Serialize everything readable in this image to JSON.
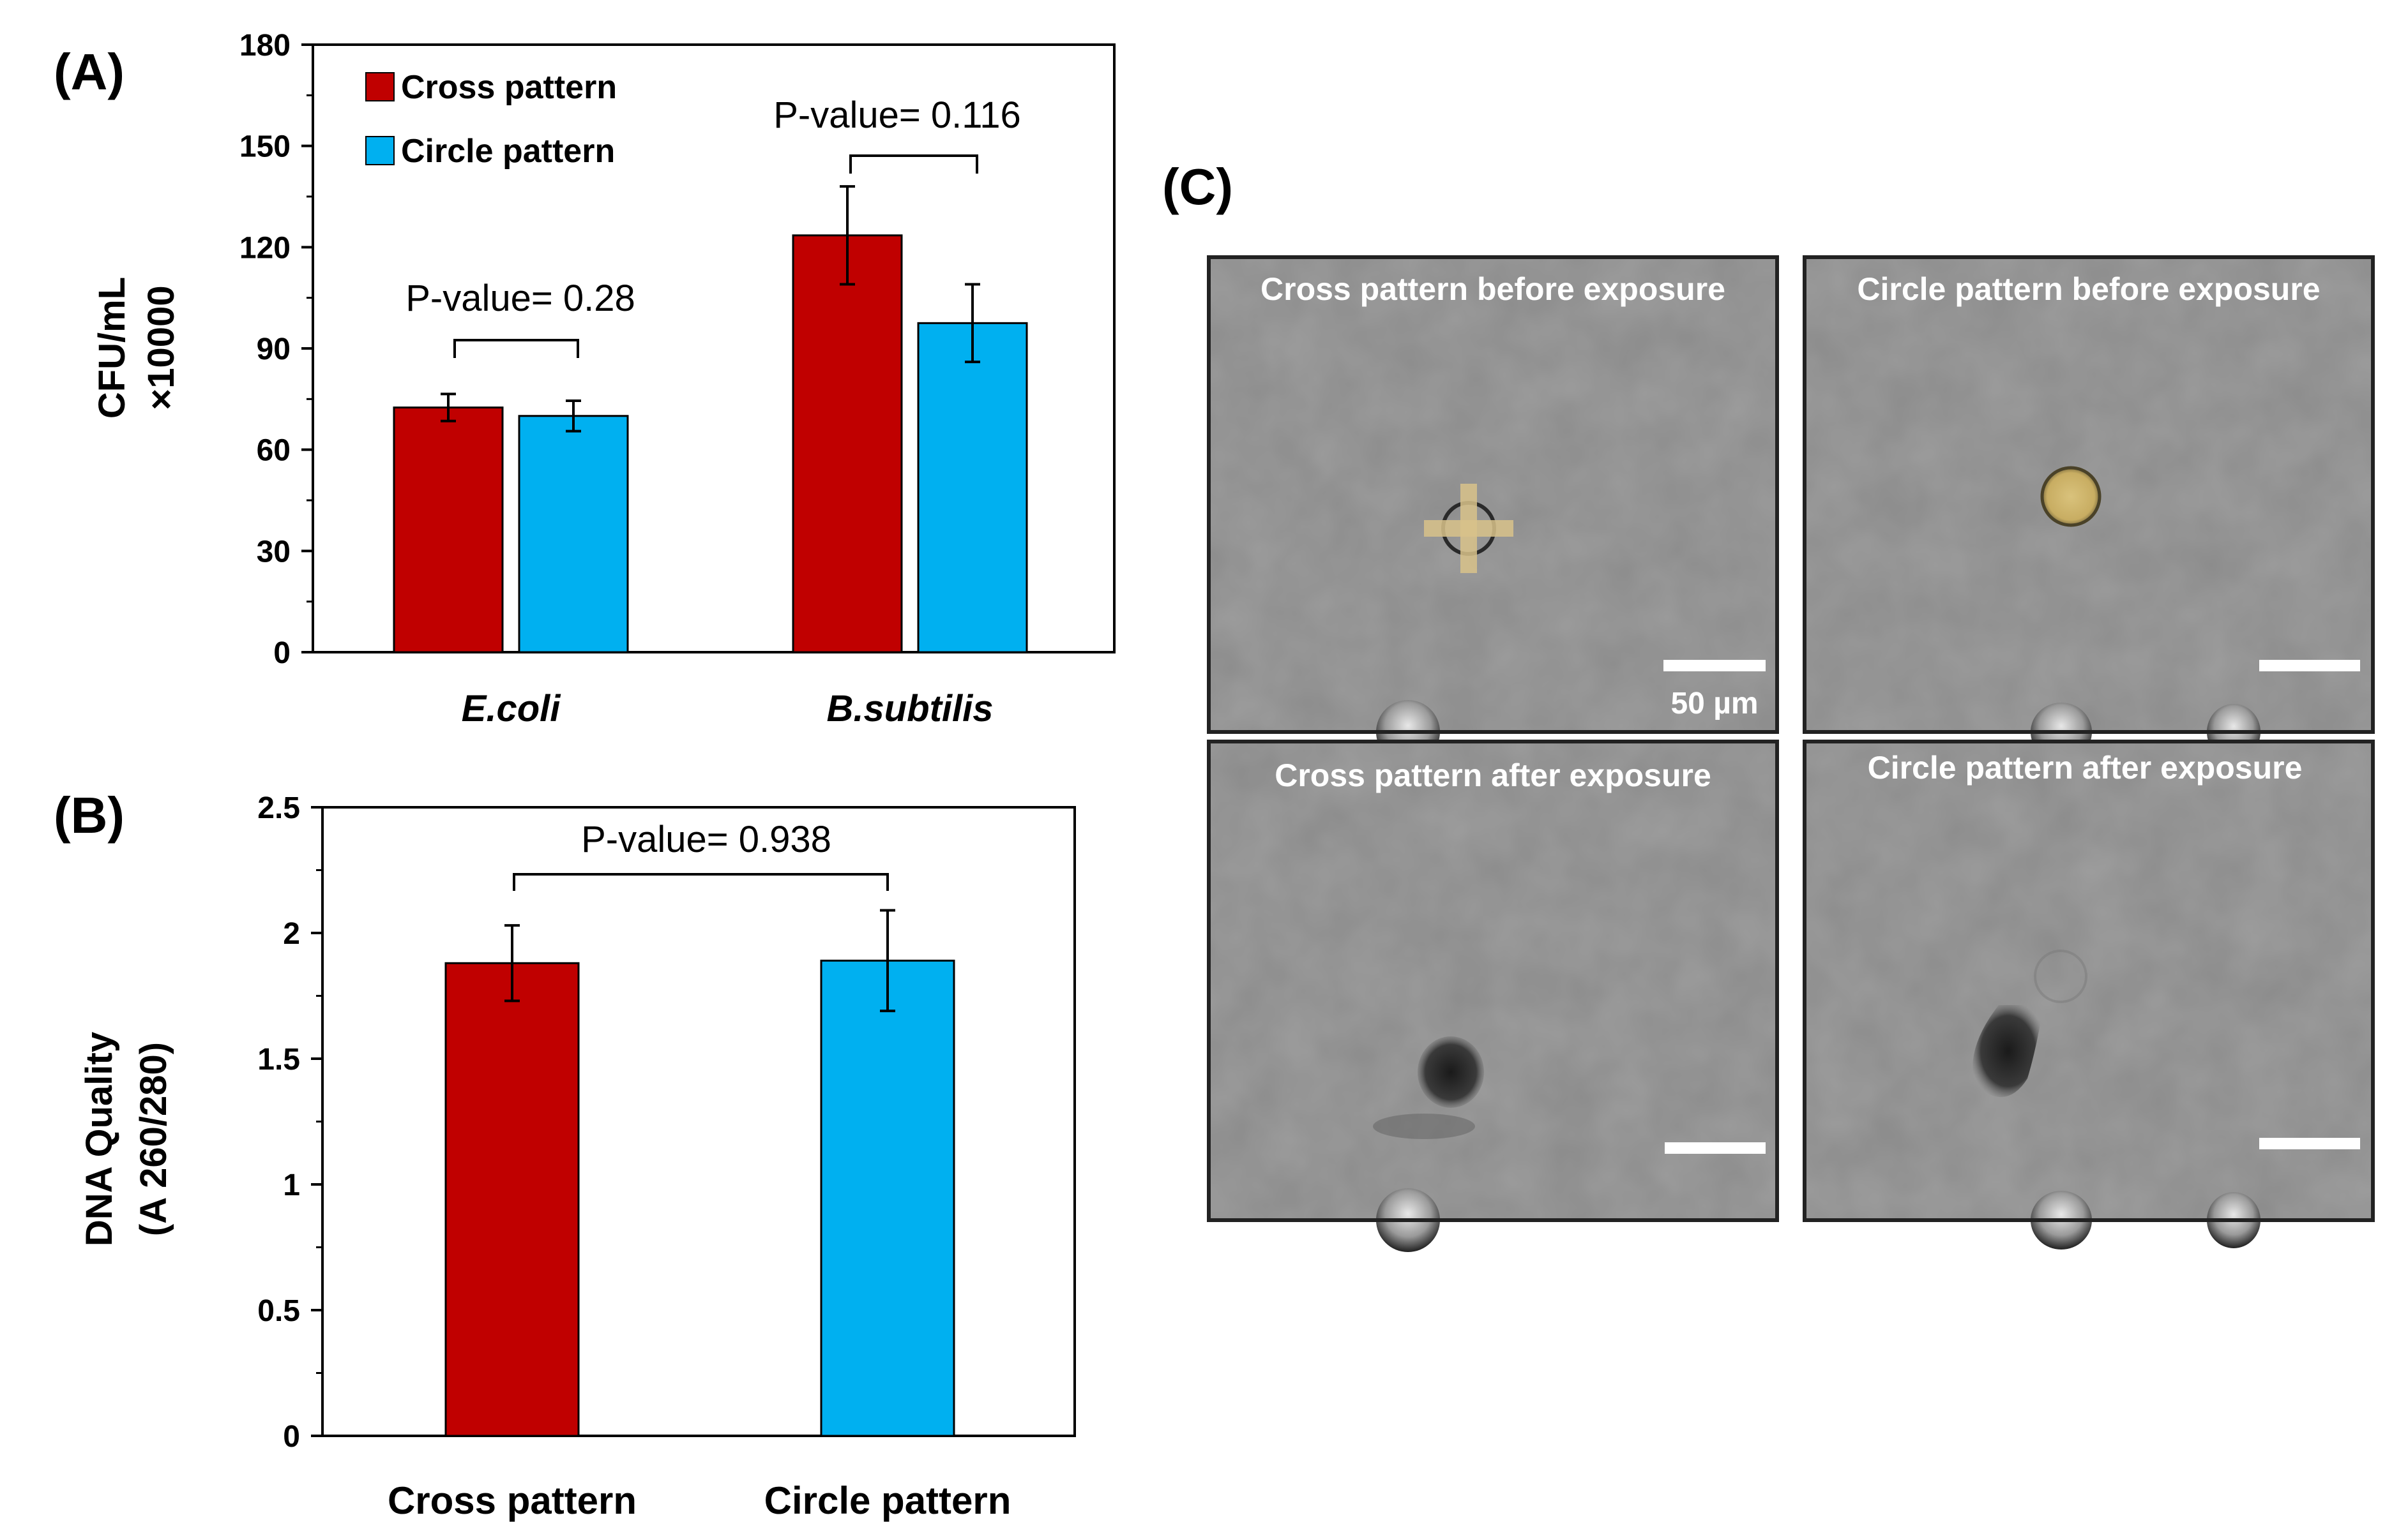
{
  "panel_labels": {
    "a": "(A)",
    "b": "(B)",
    "c": "(C)"
  },
  "colors": {
    "cross": "#C00000",
    "circle": "#00B0F0",
    "micro_bg": "#8a8a8a",
    "frame": "#222222"
  },
  "chart_data": [
    {
      "type": "bar",
      "panel": "(A)",
      "categories": [
        "E.coli",
        "B.subtilis"
      ],
      "series": [
        {
          "name": "Cross pattern",
          "values": [
            72.5,
            123.5
          ],
          "errors": [
            4,
            14.5
          ]
        },
        {
          "name": "Circle pattern",
          "values": [
            70,
            97.5
          ],
          "errors": [
            4.5,
            11.5
          ]
        }
      ],
      "ylabel": "CFU/mL",
      "ylabel2": "×10000",
      "ylim": [
        0,
        180
      ],
      "yticks": [
        "0",
        "30",
        "60",
        "90",
        "120",
        "150",
        "180"
      ],
      "legend": [
        "Cross pattern",
        "Circle pattern"
      ],
      "legend_position": "top-left",
      "annotations": [
        "P-value= 0.28",
        "P-value= 0.116"
      ]
    },
    {
      "type": "bar",
      "panel": "(B)",
      "categories": [
        "Cross pattern",
        "Circle pattern"
      ],
      "values": [
        1.88,
        1.89
      ],
      "errors": [
        0.15,
        0.2
      ],
      "ylabel": "DNA Quality",
      "ylabel2": "(A 260/280)",
      "ylim": [
        0,
        2.5
      ],
      "yticks": [
        "0",
        "0.5",
        "1",
        "1.5",
        "2",
        "2.5"
      ],
      "annotations": [
        "P-value= 0.938"
      ]
    }
  ],
  "micrographs": {
    "top_left": "Cross pattern before exposure",
    "top_right": "Circle pattern before exposure",
    "bottom_left": "Cross pattern after exposure",
    "bottom_right": "Circle pattern after exposure",
    "scale_bar": "50 µm"
  }
}
